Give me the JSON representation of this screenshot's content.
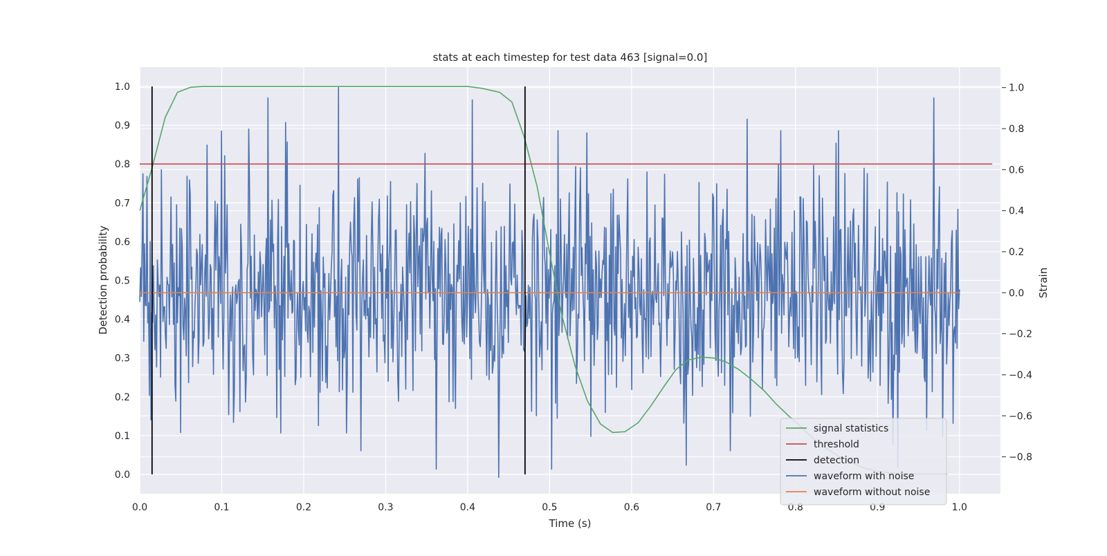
{
  "chart_data": {
    "type": "line",
    "title": "stats at each timestep for test data 463 [signal=0.0]",
    "xlabel": "Time (s)",
    "ylabel": "Detection probability",
    "y2label": "Strain",
    "xlim": [
      0.0,
      1.05
    ],
    "ylim": [
      -0.05,
      1.05
    ],
    "y2lim": [
      -0.98,
      1.1
    ],
    "xticks": [
      0.0,
      0.1,
      0.2,
      0.3,
      0.4,
      0.5,
      0.6,
      0.7,
      0.8,
      0.9,
      1.0
    ],
    "xtick_labels": [
      "0.0",
      "0.1",
      "0.2",
      "0.3",
      "0.4",
      "0.5",
      "0.6",
      "0.7",
      "0.8",
      "0.9",
      "1.0"
    ],
    "yticks": [
      0.0,
      0.1,
      0.2,
      0.3,
      0.4,
      0.5,
      0.6,
      0.7,
      0.8,
      0.9,
      1.0
    ],
    "ytick_labels": [
      "0.0",
      "0.1",
      "0.2",
      "0.3",
      "0.4",
      "0.5",
      "0.6",
      "0.7",
      "0.8",
      "0.9",
      "1.0"
    ],
    "y2ticks": [
      -0.8,
      -0.6,
      -0.4,
      -0.2,
      0.0,
      0.2,
      0.4,
      0.6,
      0.8,
      1.0
    ],
    "y2tick_labels": [
      "−0.8",
      "−0.6",
      "−0.4",
      "−0.2",
      "0.0",
      "0.2",
      "0.4",
      "0.6",
      "0.8",
      "1.0"
    ],
    "grid": true,
    "legend_position": "bottom-right",
    "legend": [
      {
        "label": "signal statistics",
        "color": "#55a868"
      },
      {
        "label": "threshold",
        "color": "#c44e52"
      },
      {
        "label": "detection",
        "color": "#000000"
      },
      {
        "label": "waveform with noise",
        "color": "#4c72b0"
      },
      {
        "label": "waveform without noise",
        "color": "#dd8452"
      }
    ],
    "series": [
      {
        "name": "signal statistics",
        "axis": "left",
        "color": "#55a868",
        "x": [
          0.0,
          0.015,
          0.031,
          0.046,
          0.062,
          0.077,
          0.092,
          0.108,
          0.2,
          0.3,
          0.4,
          0.418,
          0.439,
          0.454,
          0.469,
          0.485,
          0.5,
          0.515,
          0.531,
          0.546,
          0.562,
          0.577,
          0.592,
          0.608,
          0.623,
          0.639,
          0.654,
          0.669,
          0.685,
          0.7,
          0.715,
          0.731,
          0.746,
          0.762,
          0.777,
          0.792,
          0.808,
          0.823,
          0.839,
          0.854,
          0.869,
          0.885,
          0.9,
          0.915,
          0.931,
          0.946,
          0.962,
          0.977,
          0.985
        ],
        "values": [
          0.68,
          0.79,
          0.92,
          0.985,
          0.998,
          1.0,
          1.0,
          1.0,
          1.0,
          1.0,
          1.0,
          0.995,
          0.985,
          0.96,
          0.87,
          0.74,
          0.57,
          0.41,
          0.28,
          0.19,
          0.13,
          0.108,
          0.11,
          0.133,
          0.175,
          0.225,
          0.27,
          0.295,
          0.302,
          0.3,
          0.29,
          0.27,
          0.245,
          0.215,
          0.18,
          0.15,
          0.12,
          0.09,
          0.065,
          0.045,
          0.03,
          0.015,
          0.008,
          0.004,
          0.002,
          0.001,
          0.001,
          0.001,
          0.001
        ]
      },
      {
        "name": "threshold",
        "axis": "left",
        "color": "#c44e52",
        "x": [
          0.0,
          1.04
        ],
        "values": [
          0.8,
          0.8
        ]
      },
      {
        "name": "waveform without noise",
        "axis": "right",
        "color": "#dd8452",
        "x": [
          0.0,
          1.0
        ],
        "values": [
          0.0,
          0.0
        ]
      }
    ],
    "detections": [
      {
        "x": 0.015,
        "y_range": [
          0.0,
          1.0
        ]
      },
      {
        "x": 0.47,
        "y_range": [
          0.0,
          1.0
        ]
      }
    ],
    "noisy_waveform": {
      "name": "waveform with noise",
      "axis": "right",
      "color": "#4c72b0",
      "x_range": [
        0.0,
        1.0
      ],
      "num_points": 1024,
      "std": 0.28,
      "seed": 463,
      "peaks": [
        {
          "x": 0.004,
          "y": 0.58
        },
        {
          "x": 0.012,
          "y": -0.5
        },
        {
          "x": 0.026,
          "y": 0.6
        },
        {
          "x": 0.156,
          "y": 0.95
        },
        {
          "x": 0.178,
          "y": 0.83
        },
        {
          "x": 0.242,
          "y": 1.0
        },
        {
          "x": 0.406,
          "y": 0.94
        },
        {
          "x": 0.362,
          "y": -0.86
        },
        {
          "x": 0.438,
          "y": -0.9
        },
        {
          "x": 0.502,
          "y": -0.86
        },
        {
          "x": 0.51,
          "y": 0.79
        },
        {
          "x": 0.667,
          "y": -0.84
        },
        {
          "x": 0.782,
          "y": 0.79
        },
        {
          "x": 0.852,
          "y": 0.79
        },
        {
          "x": 0.27,
          "y": -0.77
        },
        {
          "x": 0.55,
          "y": -0.7
        },
        {
          "x": 0.72,
          "y": -0.77
        },
        {
          "x": 0.96,
          "y": -0.67
        },
        {
          "x": 0.925,
          "y": -0.85
        }
      ]
    }
  }
}
